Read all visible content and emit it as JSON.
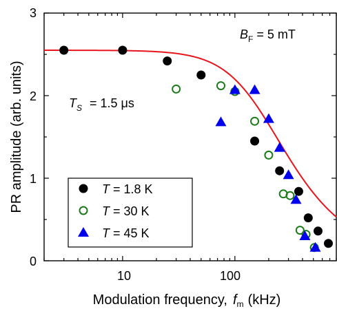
{
  "chart_data": {
    "type": "scatter",
    "xlabel_text": "Modulation frequency,",
    "xlabel_symbol": "f",
    "xlabel_sub": "m",
    "xlabel_unit": "(kHz)",
    "ylabel": "PR amplitude (arb. units)",
    "xscale": "log",
    "xlim": [
      2,
      800
    ],
    "ylim": [
      0,
      3
    ],
    "x_tick_labels": [
      "10",
      "100"
    ],
    "x_tick_values": [
      10,
      100
    ],
    "y_tick_labels": [
      "0",
      "1",
      "2",
      "3"
    ],
    "y_tick_values": [
      0,
      1,
      2,
      3
    ],
    "annotations": {
      "field_symbol": "B",
      "field_sub": "F",
      "field_value": " = 5 mT",
      "ts_symbol": "T",
      "ts_sub": "S",
      "ts_value": " = 1.5 μs"
    },
    "legend_position": "bottom-left",
    "fit_curve": {
      "color": "#e8141c",
      "amplitude": 2.55,
      "corner_kHz": 170,
      "x": [
        2,
        800
      ]
    },
    "series": [
      {
        "symbol": "T",
        "label": " = 1.8 K",
        "marker": "filled-circle",
        "color": "#000000",
        "x": [
          3,
          10,
          25,
          50,
          150,
          250,
          370,
          450,
          550,
          680
        ],
        "y": [
          2.55,
          2.55,
          2.42,
          2.25,
          1.45,
          1.09,
          0.84,
          0.52,
          0.36,
          0.21
        ]
      },
      {
        "symbol": "T",
        "label": " = 30 K",
        "marker": "open-circle",
        "color": "#1a7a1a",
        "x": [
          30,
          75,
          100,
          150,
          200,
          270,
          310,
          380,
          430,
          510
        ],
        "y": [
          2.08,
          2.12,
          2.05,
          1.69,
          1.28,
          0.81,
          0.79,
          0.37,
          0.32,
          0.16
        ]
      },
      {
        "symbol": "T",
        "label": " = 45 K",
        "marker": "filled-triangle",
        "color": "#0000ee",
        "x": [
          75,
          100,
          150,
          200,
          250,
          300,
          350,
          420,
          520
        ],
        "y": [
          1.68,
          2.07,
          2.07,
          1.72,
          1.37,
          1.04,
          0.74,
          0.3,
          0.16
        ]
      }
    ]
  }
}
